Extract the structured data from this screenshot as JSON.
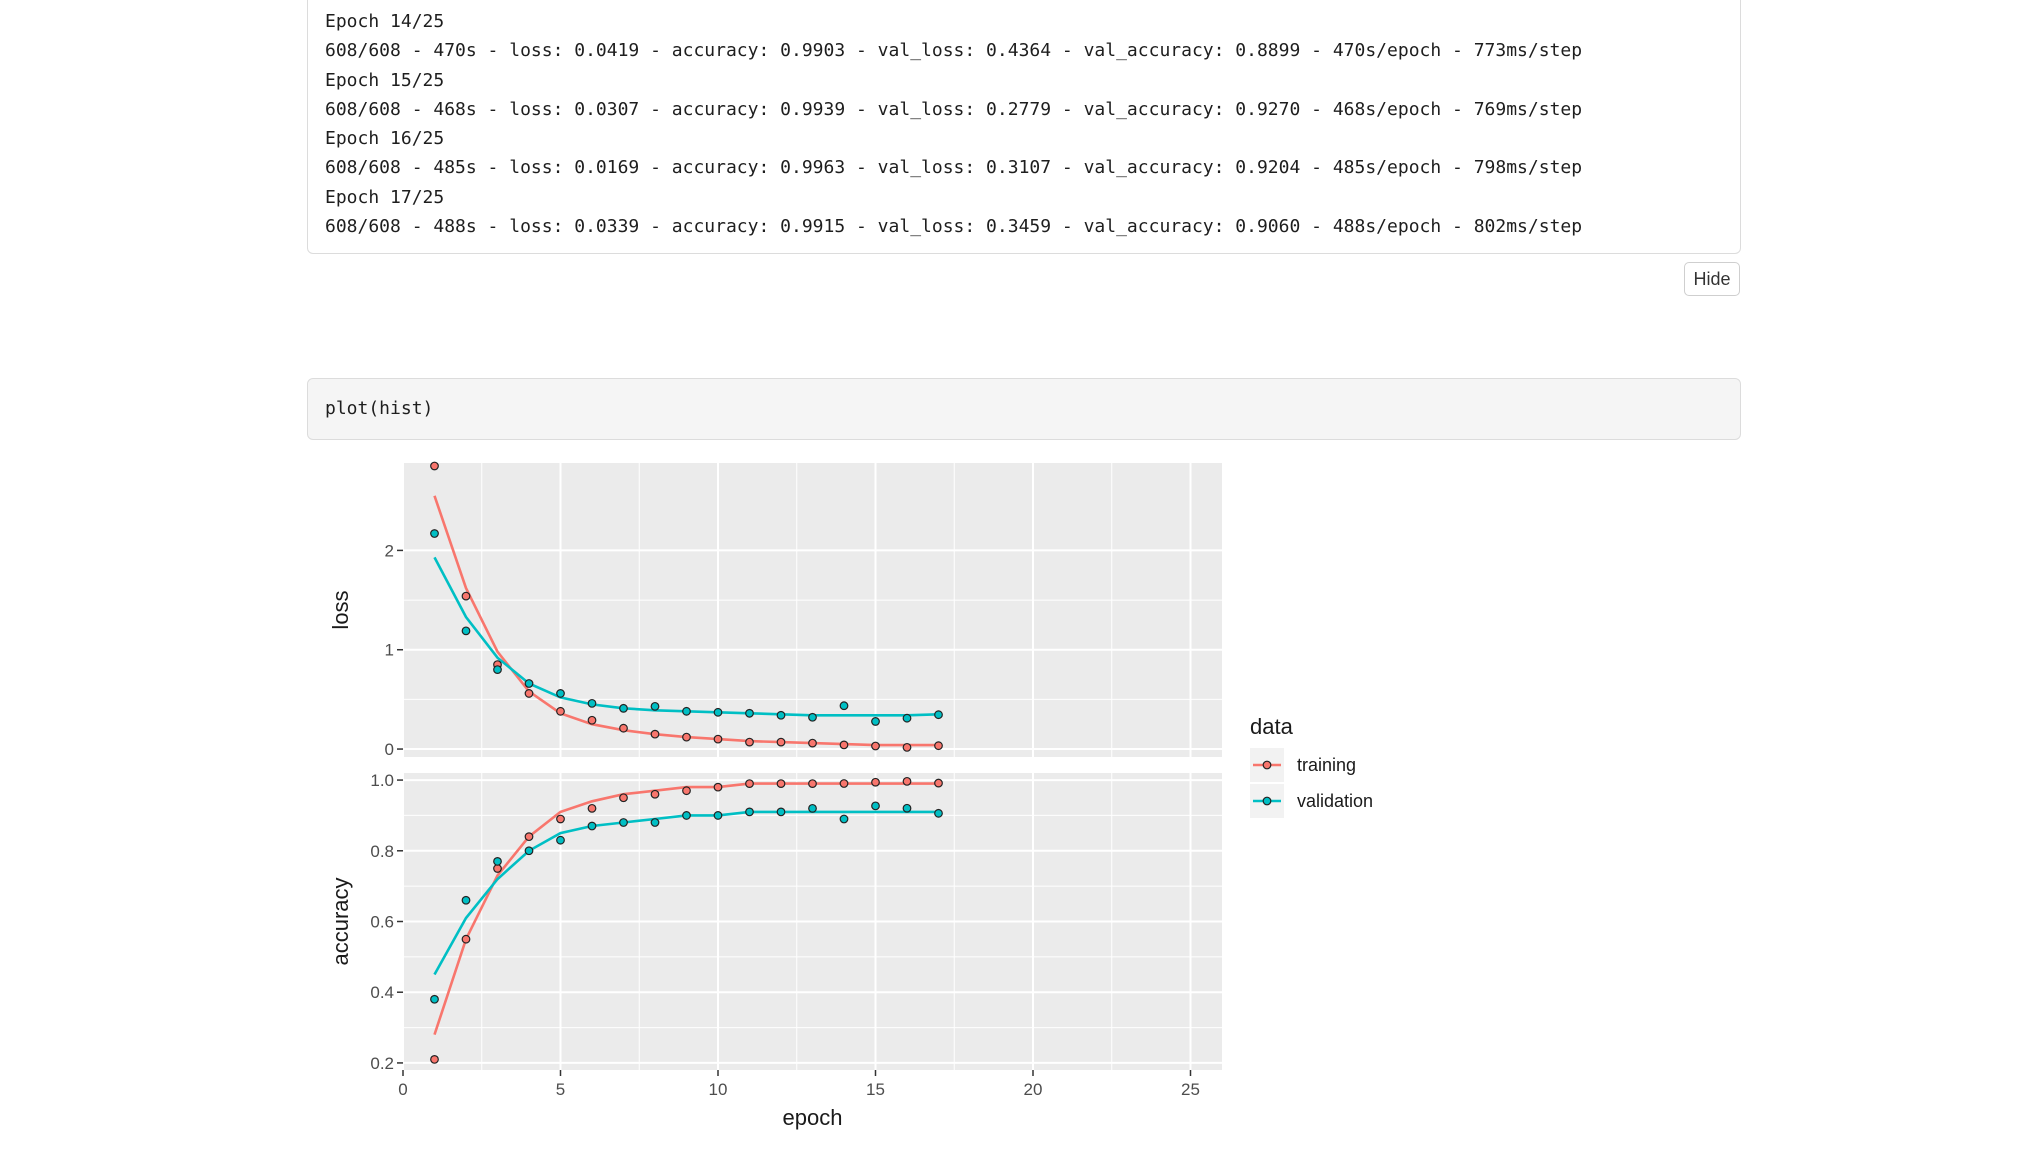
{
  "console_output": {
    "lines": [
      "Epoch 14/25",
      "608/608 - 470s - loss: 0.0419 - accuracy: 0.9903 - val_loss: 0.4364 - val_accuracy: 0.8899 - 470s/epoch - 773ms/step",
      "Epoch 15/25",
      "608/608 - 468s - loss: 0.0307 - accuracy: 0.9939 - val_loss: 0.2779 - val_accuracy: 0.9270 - 468s/epoch - 769ms/step",
      "Epoch 16/25",
      "608/608 - 485s - loss: 0.0169 - accuracy: 0.9963 - val_loss: 0.3107 - val_accuracy: 0.9204 - 485s/epoch - 798ms/step",
      "Epoch 17/25",
      "608/608 - 488s - loss: 0.0339 - accuracy: 0.9915 - val_loss: 0.3459 - val_accuracy: 0.9060 - 488s/epoch - 802ms/step"
    ],
    "hide_label": "Hide"
  },
  "code_cell": {
    "code": "plot(hist)"
  },
  "colors": {
    "training": "#F8766D",
    "validation": "#00BFC4",
    "panel": "#EBEBEB",
    "grid": "#FFFFFF"
  },
  "chart_data": {
    "type": "scatter",
    "xlabel": "epoch",
    "x_ticks": [
      0,
      5,
      10,
      15,
      20,
      25
    ],
    "xlim": [
      0,
      26
    ],
    "epochs": [
      1,
      2,
      3,
      4,
      5,
      6,
      7,
      8,
      9,
      10,
      11,
      12,
      13,
      14,
      15,
      16,
      17
    ],
    "legend": {
      "title": "data",
      "placement": "right",
      "entries": [
        "training",
        "validation"
      ]
    },
    "panels": [
      {
        "ylabel": "loss",
        "ylim": [
          -0.08,
          2.88
        ],
        "y_ticks": [
          0,
          1,
          2
        ],
        "y_tick_labels": [
          "0",
          "1",
          "2"
        ],
        "series": [
          {
            "name": "training",
            "values": [
              2.85,
              1.54,
              0.85,
              0.56,
              0.38,
              0.29,
              0.21,
              0.15,
              0.12,
              0.1,
              0.07,
              0.07,
              0.06,
              0.0419,
              0.0307,
              0.0169,
              0.0339
            ],
            "smooth": [
              2.55,
              1.62,
              0.98,
              0.58,
              0.36,
              0.25,
              0.19,
              0.15,
              0.12,
              0.1,
              0.08,
              0.07,
              0.06,
              0.05,
              0.04,
              0.04,
              0.04
            ]
          },
          {
            "name": "validation",
            "values": [
              2.17,
              1.19,
              0.8,
              0.66,
              0.56,
              0.46,
              0.41,
              0.43,
              0.38,
              0.37,
              0.36,
              0.34,
              0.32,
              0.4364,
              0.2779,
              0.3107,
              0.3459
            ],
            "smooth": [
              1.93,
              1.33,
              0.92,
              0.66,
              0.52,
              0.45,
              0.41,
              0.39,
              0.38,
              0.37,
              0.36,
              0.35,
              0.34,
              0.34,
              0.34,
              0.34,
              0.35
            ]
          }
        ]
      },
      {
        "ylabel": "accuracy",
        "ylim": [
          0.18,
          1.02
        ],
        "y_ticks": [
          0.2,
          0.4,
          0.6,
          0.8,
          1.0
        ],
        "y_tick_labels": [
          "0.2",
          "0.4",
          "0.6",
          "0.8",
          "1.0"
        ],
        "series": [
          {
            "name": "training",
            "values": [
              0.21,
              0.55,
              0.75,
              0.84,
              0.89,
              0.92,
              0.95,
              0.96,
              0.97,
              0.98,
              0.99,
              0.99,
              0.99,
              0.9903,
              0.9939,
              0.9963,
              0.9915
            ],
            "smooth": [
              0.28,
              0.55,
              0.73,
              0.84,
              0.91,
              0.94,
              0.96,
              0.97,
              0.98,
              0.98,
              0.99,
              0.99,
              0.99,
              0.99,
              0.99,
              0.99,
              0.99
            ]
          },
          {
            "name": "validation",
            "values": [
              0.38,
              0.66,
              0.77,
              0.8,
              0.83,
              0.87,
              0.88,
              0.88,
              0.9,
              0.9,
              0.91,
              0.91,
              0.92,
              0.8899,
              0.927,
              0.9204,
              0.906
            ],
            "smooth": [
              0.45,
              0.61,
              0.72,
              0.8,
              0.85,
              0.87,
              0.88,
              0.89,
              0.9,
              0.9,
              0.91,
              0.91,
              0.91,
              0.91,
              0.91,
              0.91,
              0.91
            ]
          }
        ]
      }
    ]
  }
}
